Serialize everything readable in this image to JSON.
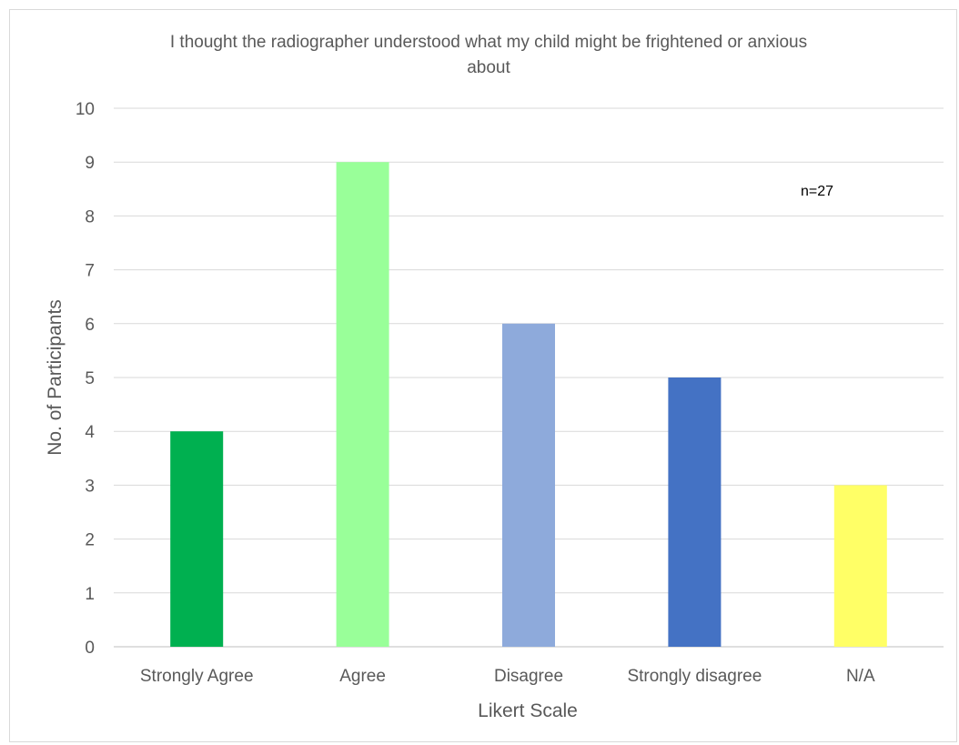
{
  "chart_data": {
    "type": "bar",
    "title_lines": [
      "I thought the radiographer understood what my child might be frightened or anxious",
      "about"
    ],
    "categories": [
      "Strongly Agree",
      "Agree",
      "Disagree",
      "Strongly disagree",
      "N/A"
    ],
    "values": [
      4,
      9,
      6,
      5,
      3
    ],
    "colors": [
      "#00b050",
      "#99ff99",
      "#8eaadb",
      "#4472c4",
      "#ffff66"
    ],
    "xlabel": "Likert Scale",
    "ylabel": "No. of Participants",
    "ylim": [
      0,
      10
    ],
    "yticks": [
      "0",
      "1",
      "2",
      "3",
      "4",
      "5",
      "6",
      "7",
      "8",
      "9",
      "10"
    ],
    "grid": true,
    "legend": "none",
    "annotation": "n=27"
  }
}
